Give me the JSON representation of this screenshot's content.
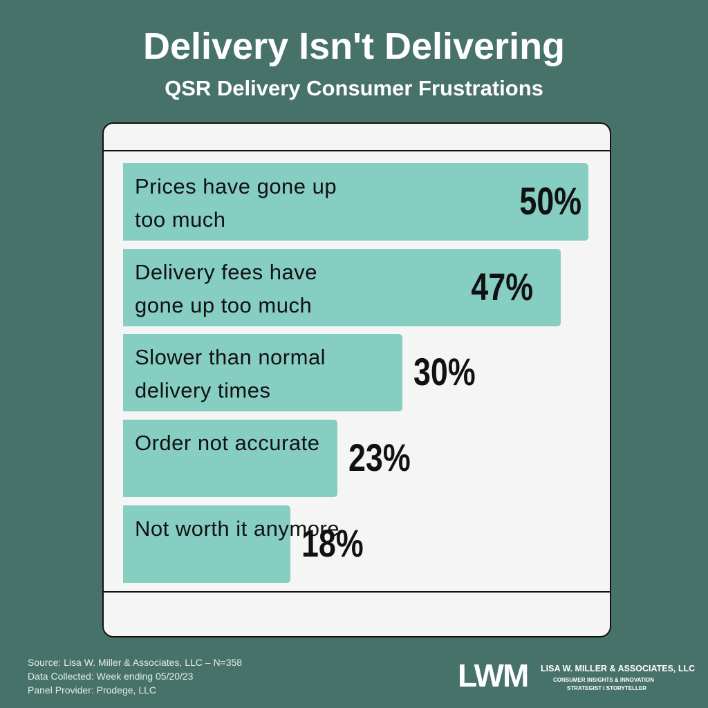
{
  "chart_data": {
    "type": "bar",
    "orientation": "horizontal",
    "title": "Delivery Isn't Delivering",
    "subtitle": "QSR Delivery Consumer Frustrations",
    "categories": [
      "Prices have gone up too much",
      "Delivery fees have gone up too much",
      "Slower than normal delivery times",
      "Order not accurate",
      "Not worth it anymore"
    ],
    "values": [
      50,
      47,
      30,
      23,
      18
    ],
    "value_labels": [
      "50%",
      "47%",
      "30%",
      "23%",
      "18%"
    ],
    "color": "#86cdc2",
    "xlim": [
      0,
      50
    ]
  },
  "footer": {
    "source": [
      "Source: Lisa W. Miller & Associates, LLC  –  N=358",
      "Data Collected: Week ending 05/20/23",
      "Panel Provider:  Prodege, LLC"
    ],
    "logo": "LWM",
    "company": "LISA W. MILLER & ASSOCIATES, LLC",
    "tagline": [
      "CONSUMER INSIGHTS & INNOVATION",
      "STRATEGIST I STORYTELLER"
    ]
  }
}
